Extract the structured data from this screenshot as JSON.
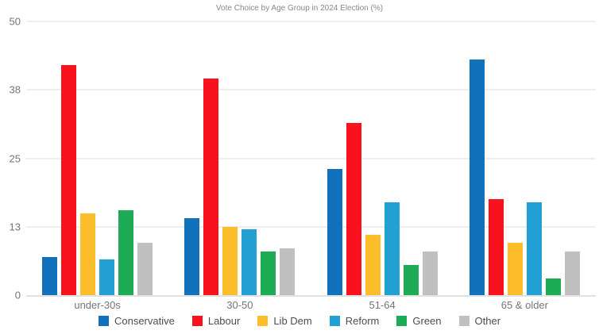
{
  "chart": {
    "title": "Vote Choice by Age Group in 2024 Election (%)"
  },
  "chart_data": {
    "type": "bar",
    "title": "Vote Choice by Age Group in 2024 Election (%)",
    "categories": [
      "under-30s",
      "30-50",
      "51-64",
      "65 & older"
    ],
    "series": [
      {
        "name": "Conservative",
        "color": "#1271BB",
        "values": [
          7,
          14,
          23,
          43
        ]
      },
      {
        "name": "Labour",
        "color": "#F8121E",
        "values": [
          42,
          39.5,
          31.5,
          17.5
        ]
      },
      {
        "name": "Lib Dem",
        "color": "#FDBE2C",
        "values": [
          15,
          12.5,
          11,
          9.5
        ]
      },
      {
        "name": "Reform",
        "color": "#22A0D3",
        "values": [
          6.5,
          12,
          17,
          17
        ]
      },
      {
        "name": "Green",
        "color": "#1DAB55",
        "values": [
          15.5,
          8,
          5.5,
          3
        ]
      },
      {
        "name": "Other",
        "color": "#C0C0C0",
        "values": [
          9.5,
          8.5,
          8,
          8
        ]
      }
    ],
    "ylim": [
      0,
      50
    ],
    "yticks": [
      {
        "value": 0,
        "label": "0"
      },
      {
        "value": 12.5,
        "label": "13"
      },
      {
        "value": 25,
        "label": "25"
      },
      {
        "value": 37.5,
        "label": "38"
      },
      {
        "value": 50,
        "label": "50"
      }
    ],
    "grid": true,
    "legend_position": "bottom",
    "background_color": "#FFFFFF",
    "gridline_color": "#EEEEEE",
    "axis_label_color": "#757575",
    "title_color": "#888888"
  }
}
